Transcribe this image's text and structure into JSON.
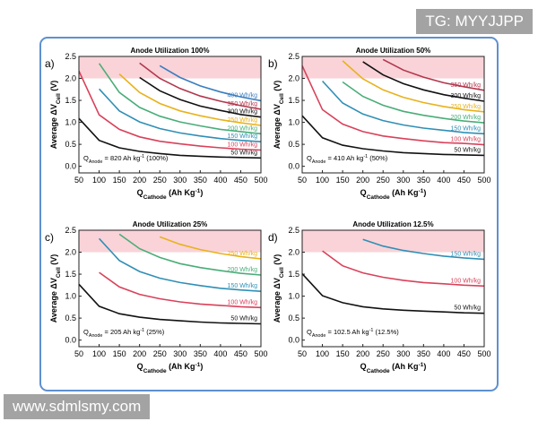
{
  "watermarks": {
    "top": "TG: MYYJJPP",
    "bottom": "www.sdmlsmy.com"
  },
  "chart_data": [
    {
      "type": "line",
      "panel_label": "a)",
      "title": "Anode Utilization 100%",
      "annotation": [
        {
          "t": "Q"
        },
        {
          "t": "Anode",
          "sub": true
        },
        {
          "t": " = 820 Ah kg"
        },
        {
          "t": "-1",
          "sup": true
        },
        {
          "t": " (100%)"
        }
      ],
      "xlabel": [
        {
          "t": "Q"
        },
        {
          "t": "Cathode",
          "sub": true
        },
        {
          "t": "  (Ah Kg"
        },
        {
          "t": "-1",
          "sup": true
        },
        {
          "t": ")"
        }
      ],
      "ylabel": [
        {
          "t": "Average ΔV"
        },
        {
          "t": "Cell",
          "sub": true
        },
        {
          "t": " (V)"
        }
      ],
      "x": [
        50,
        100,
        150,
        200,
        250,
        300,
        350,
        400,
        450,
        500
      ],
      "xlim": [
        50,
        500
      ],
      "ylim": [
        -0.15,
        2.5
      ],
      "xticks": [
        50,
        100,
        150,
        200,
        250,
        300,
        350,
        400,
        450,
        500
      ],
      "yticks": [
        {
          "value": 0,
          "label": "0.0"
        },
        0.5,
        {
          "value": 1,
          "label": "1.0"
        },
        1.5,
        {
          "value": 2,
          "label": "2.0"
        },
        2.5
      ],
      "band": [
        2.0,
        2.5
      ],
      "band_color": "#f9d3d8",
      "series": [
        {
          "name": "50 Wh/kg",
          "color": "#111111",
          "values": [
            1.09,
            0.59,
            0.42,
            0.34,
            0.29,
            0.25,
            0.23,
            0.21,
            0.2,
            0.19
          ]
        },
        {
          "name": "100 Wh/kg",
          "color": "#d9415a",
          "values": [
            2.17,
            1.17,
            0.84,
            0.67,
            0.57,
            0.51,
            0.46,
            0.42,
            0.39,
            0.37
          ]
        },
        {
          "name": "150 Wh/kg",
          "color": "#2f8fb5",
          "values": [
            null,
            1.76,
            1.26,
            1.01,
            0.86,
            0.76,
            0.69,
            0.63,
            0.59,
            0.56
          ]
        },
        {
          "name": "200 Wh/kg",
          "color": "#49ad78",
          "values": [
            null,
            2.34,
            1.68,
            1.34,
            1.14,
            1.01,
            0.92,
            0.84,
            0.79,
            0.74
          ]
        },
        {
          "name": "250 Wh/kg",
          "color": "#e8b21c",
          "values": [
            null,
            null,
            2.1,
            1.68,
            1.43,
            1.26,
            1.15,
            1.06,
            0.99,
            0.93
          ]
        },
        {
          "name": "300 Wh/kg",
          "color": "#111111",
          "values": [
            null,
            null,
            null,
            2.02,
            1.72,
            1.52,
            1.37,
            1.27,
            1.18,
            1.12
          ]
        },
        {
          "name": "350 Wh/kg",
          "color": "#b2364c",
          "values": [
            null,
            null,
            null,
            2.35,
            2.0,
            1.77,
            1.6,
            1.48,
            1.38,
            1.3
          ]
        },
        {
          "name": "400 Wh/kg",
          "color": "#3a7dc0",
          "values": [
            null,
            null,
            null,
            null,
            2.29,
            2.02,
            1.83,
            1.69,
            1.58,
            1.49
          ]
        }
      ]
    },
    {
      "type": "line",
      "panel_label": "b)",
      "title": "Anode Utilization 50%",
      "annotation": [
        {
          "t": "Q"
        },
        {
          "t": "Anode",
          "sub": true
        },
        {
          "t": " = 410 Ah kg"
        },
        {
          "t": "-1",
          "sup": true
        },
        {
          "t": " (50%)"
        }
      ],
      "xlabel": [
        {
          "t": "Q"
        },
        {
          "t": "Cathode",
          "sub": true
        },
        {
          "t": "  (Ah Kg"
        },
        {
          "t": "-1",
          "sup": true
        },
        {
          "t": ")"
        }
      ],
      "ylabel": [
        {
          "t": "Average ΔV"
        },
        {
          "t": "Cell",
          "sub": true
        },
        {
          "t": " (V)"
        }
      ],
      "x": [
        50,
        100,
        150,
        200,
        250,
        300,
        350,
        400,
        450,
        500
      ],
      "xlim": [
        50,
        500
      ],
      "ylim": [
        -0.15,
        2.5
      ],
      "xticks": [
        50,
        100,
        150,
        200,
        250,
        300,
        350,
        400,
        450,
        500
      ],
      "yticks": [
        {
          "value": 0,
          "label": "0.0"
        },
        0.5,
        {
          "value": 1,
          "label": "1.0"
        },
        1.5,
        {
          "value": 2,
          "label": "2.0"
        },
        2.5
      ],
      "band": [
        2.0,
        2.5
      ],
      "band_color": "#f9d3d8",
      "series": [
        {
          "name": "50 Wh/kg",
          "color": "#111111",
          "values": [
            1.15,
            0.65,
            0.48,
            0.4,
            0.35,
            0.31,
            0.29,
            0.27,
            0.26,
            0.25
          ]
        },
        {
          "name": "100 Wh/kg",
          "color": "#d9415a",
          "values": [
            2.29,
            1.29,
            0.96,
            0.79,
            0.69,
            0.63,
            0.58,
            0.54,
            0.52,
            0.49
          ]
        },
        {
          "name": "150 Wh/kg",
          "color": "#2f8fb5",
          "values": [
            null,
            1.94,
            1.44,
            1.19,
            1.04,
            0.94,
            0.87,
            0.82,
            0.77,
            0.74
          ]
        },
        {
          "name": "200 Wh/kg",
          "color": "#49ad78",
          "values": [
            null,
            null,
            1.92,
            1.59,
            1.39,
            1.25,
            1.16,
            1.09,
            1.03,
            0.99
          ]
        },
        {
          "name": "250 Wh/kg",
          "color": "#e8b21c",
          "values": [
            null,
            null,
            2.4,
            1.99,
            1.74,
            1.57,
            1.45,
            1.36,
            1.29,
            1.24
          ]
        },
        {
          "name": "300 Wh/kg",
          "color": "#111111",
          "values": [
            null,
            null,
            null,
            2.38,
            2.08,
            1.88,
            1.74,
            1.63,
            1.55,
            1.48
          ]
        },
        {
          "name": "350 Wh/kg",
          "color": "#b2364c",
          "values": [
            null,
            null,
            null,
            null,
            2.43,
            2.19,
            2.03,
            1.9,
            1.81,
            1.73
          ]
        }
      ]
    },
    {
      "type": "line",
      "panel_label": "c)",
      "title": "Anode Utilization 25%",
      "annotation": [
        {
          "t": "Q"
        },
        {
          "t": "Anode",
          "sub": true
        },
        {
          "t": " = 205 Ah kg"
        },
        {
          "t": "-1",
          "sup": true
        },
        {
          "t": " (25%)"
        }
      ],
      "xlabel": [
        {
          "t": "Q"
        },
        {
          "t": "Cathode",
          "sub": true
        },
        {
          "t": "  (Ah Kg"
        },
        {
          "t": "-1",
          "sup": true
        },
        {
          "t": ")"
        }
      ],
      "ylabel": [
        {
          "t": "Average ΔV"
        },
        {
          "t": "Cell",
          "sub": true
        },
        {
          "t": " (V)"
        }
      ],
      "x": [
        50,
        100,
        150,
        200,
        250,
        300,
        350,
        400,
        450,
        500
      ],
      "xlim": [
        50,
        500
      ],
      "ylim": [
        -0.15,
        2.5
      ],
      "xticks": [
        50,
        100,
        150,
        200,
        250,
        300,
        350,
        400,
        450,
        500
      ],
      "yticks": [
        {
          "value": 0,
          "label": "0.0"
        },
        0.5,
        {
          "value": 1,
          "label": "1.0"
        },
        1.5,
        {
          "value": 2,
          "label": "2.0"
        },
        2.5
      ],
      "band": [
        2.0,
        2.5
      ],
      "band_color": "#f9d3d8",
      "series": [
        {
          "name": "50 Wh/kg",
          "color": "#111111",
          "values": [
            1.27,
            0.77,
            0.6,
            0.52,
            0.47,
            0.44,
            0.41,
            0.39,
            0.38,
            0.37
          ]
        },
        {
          "name": "100 Wh/kg",
          "color": "#d9415a",
          "values": [
            null,
            1.54,
            1.21,
            1.04,
            0.94,
            0.87,
            0.82,
            0.79,
            0.76,
            0.74
          ]
        },
        {
          "name": "150 Wh/kg",
          "color": "#2f8fb5",
          "values": [
            null,
            2.31,
            1.81,
            1.56,
            1.41,
            1.31,
            1.24,
            1.18,
            1.14,
            1.11
          ]
        },
        {
          "name": "200 Wh/kg",
          "color": "#49ad78",
          "values": [
            null,
            null,
            2.41,
            2.08,
            1.88,
            1.74,
            1.65,
            1.58,
            1.52,
            1.48
          ]
        },
        {
          "name": "250 Wh/kg",
          "color": "#e8b21c",
          "values": [
            null,
            null,
            null,
            null,
            2.35,
            2.18,
            2.06,
            1.97,
            1.9,
            1.85
          ]
        }
      ]
    },
    {
      "type": "line",
      "panel_label": "d)",
      "title": "Anode Utilization 12.5%",
      "annotation": [
        {
          "t": "Q"
        },
        {
          "t": "Anode",
          "sub": true
        },
        {
          "t": " = 102.5 Ah kg"
        },
        {
          "t": "-1",
          "sup": true
        },
        {
          "t": " (12.5%)"
        }
      ],
      "xlabel": [
        {
          "t": "Q"
        },
        {
          "t": "Cathode",
          "sub": true
        },
        {
          "t": "  (Ah Kg"
        },
        {
          "t": "-1",
          "sup": true
        },
        {
          "t": ")"
        }
      ],
      "ylabel": [
        {
          "t": "Average ΔV"
        },
        {
          "t": "Cell",
          "sub": true
        },
        {
          "t": " (V)"
        }
      ],
      "x": [
        50,
        100,
        150,
        200,
        250,
        300,
        350,
        400,
        450,
        500
      ],
      "xlim": [
        50,
        500
      ],
      "ylim": [
        -0.15,
        2.5
      ],
      "xticks": [
        50,
        100,
        150,
        200,
        250,
        300,
        350,
        400,
        450,
        500
      ],
      "yticks": [
        {
          "value": 0,
          "label": "0.0"
        },
        0.5,
        {
          "value": 1,
          "label": "1.0"
        },
        1.5,
        {
          "value": 2,
          "label": "2.0"
        },
        2.5
      ],
      "band": [
        2.0,
        2.5
      ],
      "band_color": "#f9d3d8",
      "series": [
        {
          "name": "50 Wh/kg",
          "color": "#111111",
          "values": [
            1.51,
            1.01,
            0.85,
            0.76,
            0.71,
            0.68,
            0.66,
            0.64,
            0.62,
            0.61
          ]
        },
        {
          "name": "100 Wh/kg",
          "color": "#d9415a",
          "values": [
            null,
            2.03,
            1.69,
            1.53,
            1.43,
            1.36,
            1.31,
            1.28,
            1.25,
            1.23
          ]
        },
        {
          "name": "150 Wh/kg",
          "color": "#2f8fb5",
          "values": [
            null,
            null,
            null,
            2.29,
            2.14,
            2.04,
            1.97,
            1.91,
            1.87,
            1.84
          ]
        }
      ]
    }
  ]
}
